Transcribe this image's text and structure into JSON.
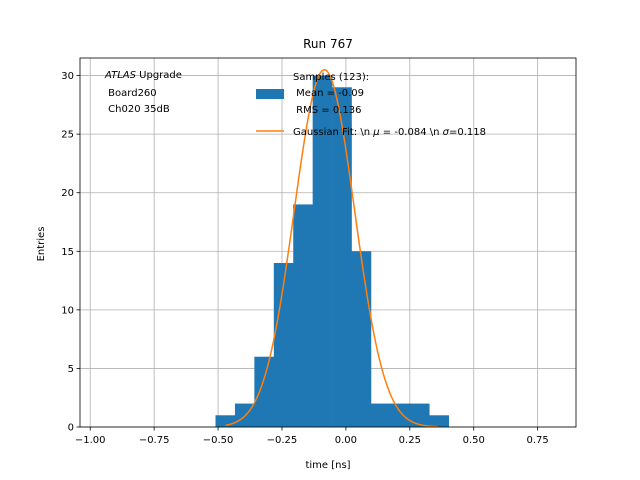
{
  "chart_data": {
    "type": "bar",
    "title": "Run 767",
    "xlabel": "time [ns]",
    "ylabel": "Entries",
    "xlim": [
      -1.04,
      0.9
    ],
    "ylim": [
      0,
      31.5
    ],
    "grid": true,
    "x_ticks": [
      -1.0,
      -0.75,
      -0.5,
      -0.25,
      0.0,
      0.25,
      0.5,
      0.75
    ],
    "x_tick_labels": [
      "−1.00",
      "−0.75",
      "−0.50",
      "−0.25",
      "0.00",
      "0.25",
      "0.50",
      "0.75"
    ],
    "y_ticks": [
      0,
      5,
      10,
      15,
      20,
      25,
      30
    ],
    "y_tick_labels": [
      "0",
      "5",
      "10",
      "15",
      "20",
      "25",
      "30"
    ],
    "annotation": {
      "italic": "ATLAS",
      "rest": " Upgrade",
      "line2": " Board260",
      "line3": " Ch020 35dB"
    },
    "legend": {
      "placement": "top-right",
      "bar_label_lines": [
        "Samples (123):",
        " Mean = -0.09",
        " RMS = 0.136"
      ],
      "fit_label_parts": [
        "Gaussian Fit: \\n ",
        "μ",
        " = -0.084 \\n ",
        "σ",
        "=0.118"
      ]
    },
    "series": [
      {
        "kind": "histogram",
        "color": "#1f77b4",
        "bin_edges": [
          -0.51,
          -0.434,
          -0.358,
          -0.282,
          -0.206,
          -0.13,
          -0.054,
          0.022,
          0.098,
          0.174,
          0.25,
          0.326,
          0.402
        ],
        "counts": [
          1,
          2,
          6,
          14,
          19,
          30,
          29,
          15,
          2,
          2,
          2,
          1
        ]
      },
      {
        "kind": "line",
        "color": "#ff7f0e",
        "function": "gaussian",
        "amplitude": 30.5,
        "mu": -0.084,
        "sigma": 0.118,
        "x_range": [
          -0.47,
          0.36
        ]
      }
    ]
  }
}
